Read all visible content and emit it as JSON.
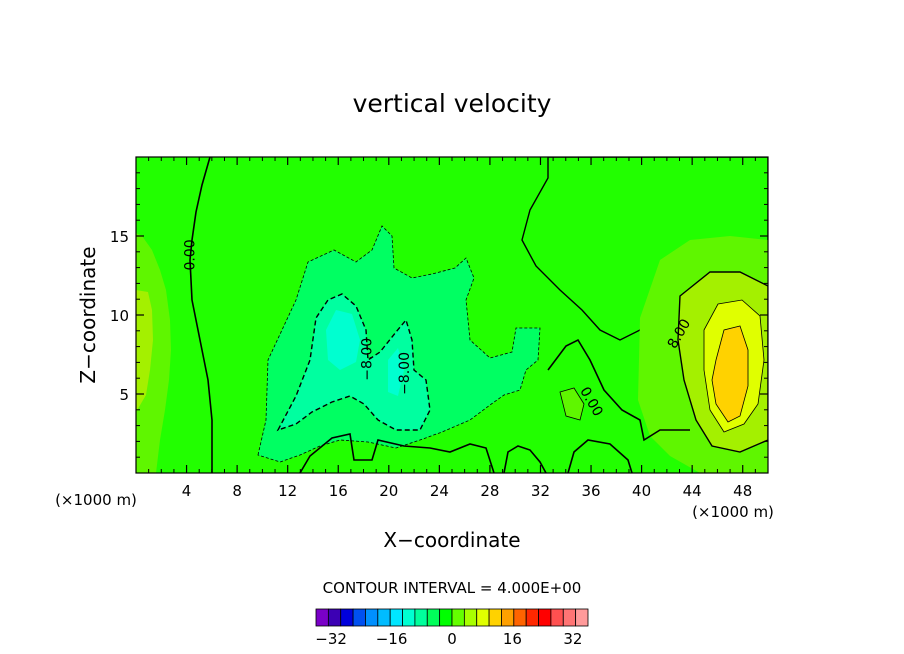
{
  "chart_data": {
    "type": "contour",
    "title": "vertical velocity",
    "xlabel": "X−coordinate",
    "ylabel": "Z−coordinate",
    "x_unit_left": "(×1000 m)",
    "x_unit_right": "(×1000 m)",
    "xlim": [
      0,
      50
    ],
    "ylim": [
      0,
      20
    ],
    "x_ticks": [
      4,
      8,
      12,
      16,
      20,
      24,
      28,
      32,
      36,
      40,
      44,
      48
    ],
    "y_ticks": [
      5,
      10,
      15
    ],
    "contour_interval_text": "CONTOUR INTERVAL = 4.000E+00",
    "contour_labels": [
      {
        "text": "0.00",
        "x": 4.3,
        "z": 13.8
      },
      {
        "text": "−8.00",
        "x": 18.3,
        "z": 7.2
      },
      {
        "text": "−8.00",
        "x": 21.3,
        "z": 6.3
      },
      {
        "text": "0.00",
        "x": 36.0,
        "z": 4.5
      },
      {
        "text": "8.00",
        "x": 43.0,
        "z": 8.8
      }
    ],
    "colorbar": {
      "min": -36,
      "max": 36,
      "step": 4,
      "tick_values": [
        -32,
        -16,
        0,
        16,
        32
      ],
      "tick_labels": [
        "−32",
        "−16",
        "0",
        "16",
        "32"
      ],
      "colors": [
        "#7a00c8",
        "#3c00b4",
        "#0000dc",
        "#0050f0",
        "#0090ff",
        "#00bcff",
        "#00e6ff",
        "#00ffd2",
        "#00ff9c",
        "#00ff5a",
        "#00ff00",
        "#64ff00",
        "#a8ff00",
        "#e0ff00",
        "#ffd200",
        "#ffa000",
        "#ff6400",
        "#ff2800",
        "#ff0000",
        "#ff5050",
        "#ff7474",
        "#ff9a9a"
      ]
    }
  }
}
